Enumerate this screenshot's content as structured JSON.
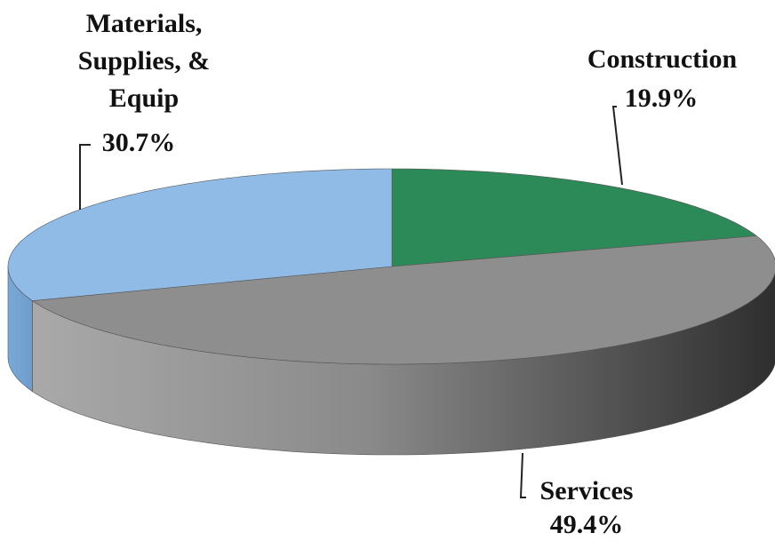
{
  "chart_data": {
    "type": "pie",
    "categories": [
      "Construction",
      "Services",
      "Materials, Supplies, & Equip"
    ],
    "values": [
      19.9,
      49.4,
      30.7
    ],
    "value_labels": [
      "19.9%",
      "49.4%",
      "30.7%"
    ],
    "colors": [
      "#2b8a57",
      "#8e8e8e",
      "#8fbbe6"
    ]
  }
}
